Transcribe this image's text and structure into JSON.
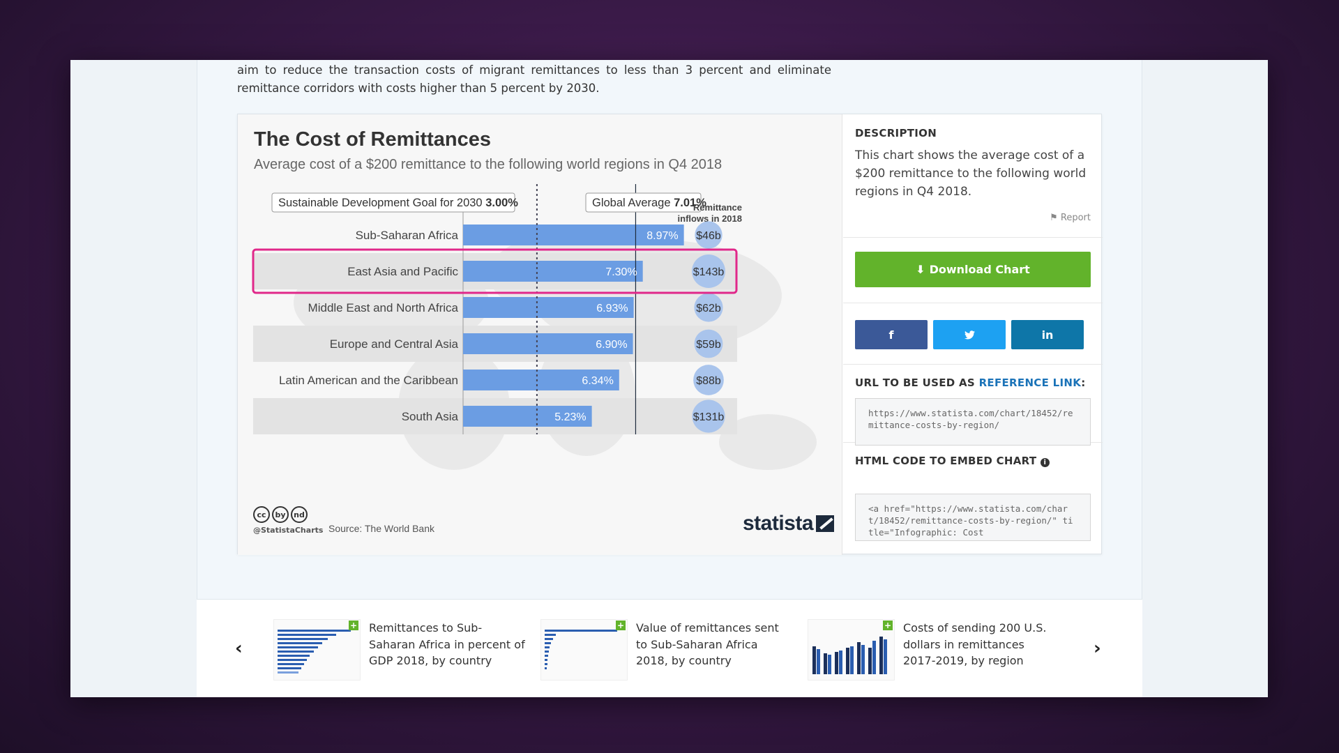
{
  "intro": {
    "line1": "aim to reduce the transaction costs of migrant remittances to less than 3 percent and eliminate",
    "line2": "remittance corridors with costs higher than 5 percent by 2030."
  },
  "chart_data": {
    "type": "bar",
    "orientation": "horizontal",
    "title": "The Cost of Remittances",
    "subtitle": "Average cost of a $200 remittance to the following world regions in Q4 2018",
    "categories": [
      "Sub-Saharan Africa",
      "East Asia and Pacific",
      "Middle East and North Africa",
      "Europe and Central Asia",
      "Latin American and the Caribbean",
      "South Asia"
    ],
    "values": [
      8.97,
      7.3,
      6.93,
      6.9,
      6.34,
      5.23
    ],
    "value_labels": [
      "8.97%",
      "7.30%",
      "6.93%",
      "6.90%",
      "6.34%",
      "5.23%"
    ],
    "inflows_header": [
      "Remittance",
      "inflows in 2018"
    ],
    "inflows": [
      46,
      143,
      62,
      59,
      88,
      131
    ],
    "inflow_labels": [
      "$46b",
      "$143b",
      "$62b",
      "$59b",
      "$88b",
      "$131b"
    ],
    "reference_lines": [
      {
        "label": "Sustainable Development Goal for 2030",
        "value_label": "3.00%",
        "value": 3.0,
        "style": "dotted"
      },
      {
        "label": "Global Average",
        "value_label": "7.01%",
        "value": 7.01,
        "style": "solid"
      }
    ],
    "highlighted_category": "East Asia and Pacific",
    "xlim": [
      0,
      10
    ],
    "bar_color": "#6b9de3",
    "bubble_color": "#a9c4ec",
    "highlight_color": "#e0288a"
  },
  "chart_footer": {
    "cc_icons": [
      "cc",
      "by",
      "nd"
    ],
    "handle": "@StatistaCharts",
    "source": "Source: The World Bank",
    "logo": "statista"
  },
  "sidebar": {
    "description_heading": "DESCRIPTION",
    "description_text": "This chart shows the average cost of a $200 remittance to the following world regions in Q4 2018.",
    "report_label": "Report",
    "download_label": "Download Chart",
    "share": {
      "facebook": "f",
      "twitter": "t",
      "linkedin": "in"
    },
    "url_heading_prefix": "URL TO BE USED AS ",
    "url_heading_link": "REFERENCE LINK",
    "url_heading_suffix": ":",
    "url_value": "https://www.statista.com/chart/18452/remittance-costs-by-region/",
    "embed_heading": "HTML CODE TO EMBED CHART",
    "embed_value": "<a href=\"https://www.statista.com/chart/18452/remittance-costs-by-region/\" title=\"Infographic: Cost"
  },
  "related": {
    "items": [
      {
        "title": "Remittances to Sub-Saharan Africa in percent of GDP 2018, by country"
      },
      {
        "title": "Value of remittances sent to Sub-Saharan Africa 2018, by country"
      },
      {
        "title": "Costs of sending 200 U.S. dollars in remittances 2017-2019, by region"
      }
    ],
    "prev_label": "‹",
    "next_label": "›"
  },
  "colors": {
    "download_green": "#62b32b",
    "facebook": "#3b5998",
    "twitter": "#1da1f2",
    "linkedin": "#0e76a8",
    "link_blue": "#1b73b8"
  }
}
